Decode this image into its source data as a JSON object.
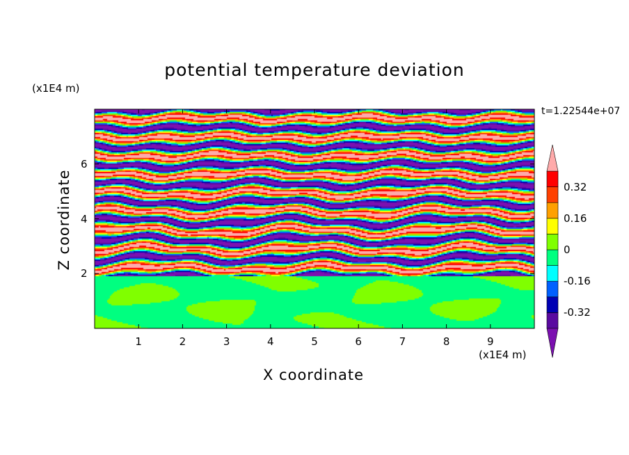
{
  "chart_data": {
    "type": "heatmap",
    "title": "potential temperature deviation",
    "xlabel": "X coordinate",
    "ylabel": "Z coordinate",
    "x_unit": "(x1E4 m)",
    "y_unit": "(x1E4 m)",
    "time_label": "t=1.22544e+07",
    "xlim": [
      0,
      10
    ],
    "ylim": [
      0,
      8
    ],
    "x_ticks": [
      "1",
      "2",
      "3",
      "4",
      "5",
      "6",
      "7",
      "8",
      "9"
    ],
    "y_ticks": [
      "2",
      "4",
      "6"
    ],
    "colorbar": {
      "levels": [
        -0.4,
        -0.32,
        -0.24,
        -0.16,
        -0.08,
        0,
        0.08,
        0.16,
        0.24,
        0.32,
        0.4
      ],
      "labels": [
        "0.32",
        "0.16",
        "0",
        "-0.16",
        "-0.32"
      ],
      "label_values": [
        0.32,
        0.16,
        0,
        -0.16,
        -0.32
      ],
      "colors_low_to_high": [
        "#7b10b0",
        "#5a0aa0",
        "#0000b4",
        "#0060ff",
        "#00ffff",
        "#00ff80",
        "#80ff00",
        "#ffff00",
        "#ffa000",
        "#ff4000",
        "#ff0000",
        "#ffaaaa"
      ]
    },
    "layers": [
      {
        "name": "lower layer",
        "z_range": [
          0,
          1.95
        ],
        "dominant_colors": [
          "#00ff80",
          "#80ff00"
        ]
      },
      {
        "name": "upper banded layer",
        "z_range": [
          1.95,
          8
        ],
        "dominant_colors": [
          "#ffaaaa",
          "#7b10b0"
        ]
      }
    ]
  }
}
